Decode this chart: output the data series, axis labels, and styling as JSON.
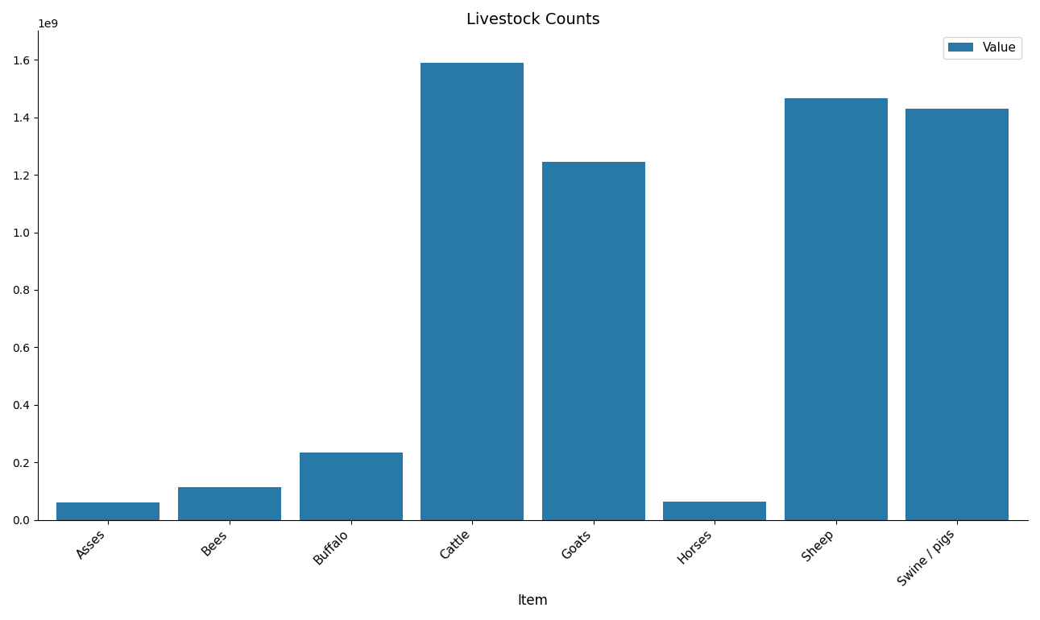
{
  "categories": [
    "Asses",
    "Bees",
    "Buffalo",
    "Cattle",
    "Goats",
    "Horses",
    "Sheep",
    "Swine / pigs"
  ],
  "values": [
    60000000,
    115000000,
    235000000,
    1590000000,
    1245000000,
    65000000,
    1465000000,
    1430000000
  ],
  "bar_color": "#2878a8",
  "title": "Livestock Counts",
  "xlabel": "Item",
  "ylabel": "",
  "legend_label": "Value",
  "background_color": "#ffffff",
  "ylim": [
    0,
    1700000000
  ],
  "bar_width": 0.85
}
